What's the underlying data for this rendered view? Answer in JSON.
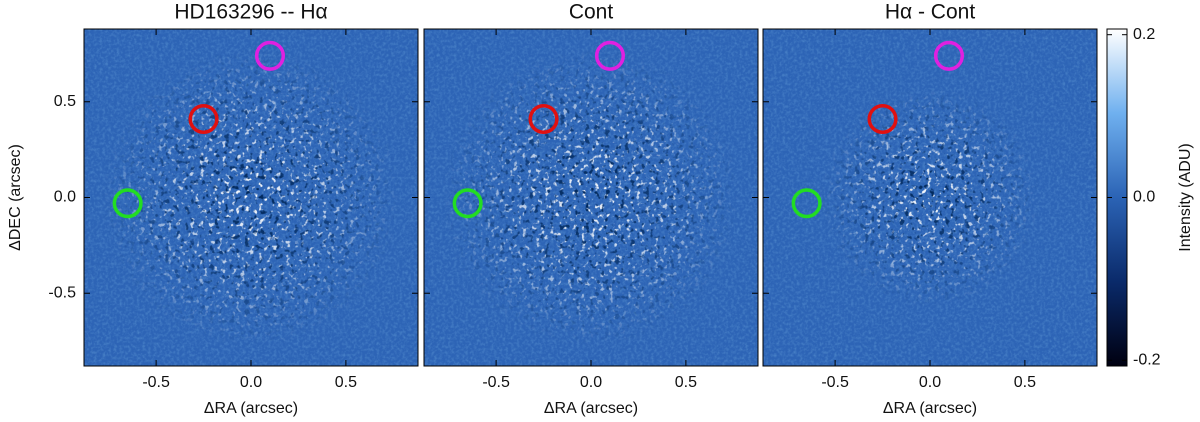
{
  "chart_data": [
    {
      "type": "image",
      "title": "HD163296 -- Hα",
      "xlabel": "ΔRA (arcsec)",
      "ylabel": "ΔDEC (arcsec)",
      "xlim": [
        -0.88,
        0.88
      ],
      "ylim": [
        -0.88,
        0.88
      ],
      "xticks": [
        -0.5,
        {
          "value": 0,
          "label": "0.0"
        },
        0.5
      ],
      "yticks": [
        -0.5,
        {
          "value": 0,
          "label": "0.0"
        },
        0.5
      ]
    },
    {
      "type": "image",
      "title": "Cont",
      "xlabel": "ΔRA (arcsec)",
      "xlim": [
        -0.88,
        0.88
      ],
      "ylim": [
        -0.88,
        0.88
      ],
      "xticks": [
        -0.5,
        {
          "value": 0,
          "label": "0.0"
        },
        0.5
      ]
    },
    {
      "type": "image",
      "title": "Hα - Cont",
      "xlabel": "ΔRA (arcsec)",
      "xlim": [
        -0.88,
        0.88
      ],
      "ylim": [
        -0.88,
        0.88
      ],
      "xticks": [
        -0.5,
        {
          "value": 0,
          "label": "0.0"
        },
        0.5
      ]
    }
  ],
  "circles": {
    "x": [
      -0.65,
      -0.25,
      0.1
    ],
    "y": [
      -0.03,
      0.41,
      0.74
    ],
    "colors": [
      "#22dd22",
      "#e01010",
      "#e020e0"
    ],
    "radius": 0.07
  },
  "colorbar": {
    "label": "Intensity (ADU)",
    "lim": [
      -0.207,
      0.207
    ],
    "ticks": [
      -0.2,
      {
        "value": 0,
        "label": "0.0"
      },
      0.2
    ],
    "colors": [
      "#000010",
      "#0a2a6a",
      "#2b63b5",
      "#6fb0ef",
      "#ffffff"
    ]
  }
}
